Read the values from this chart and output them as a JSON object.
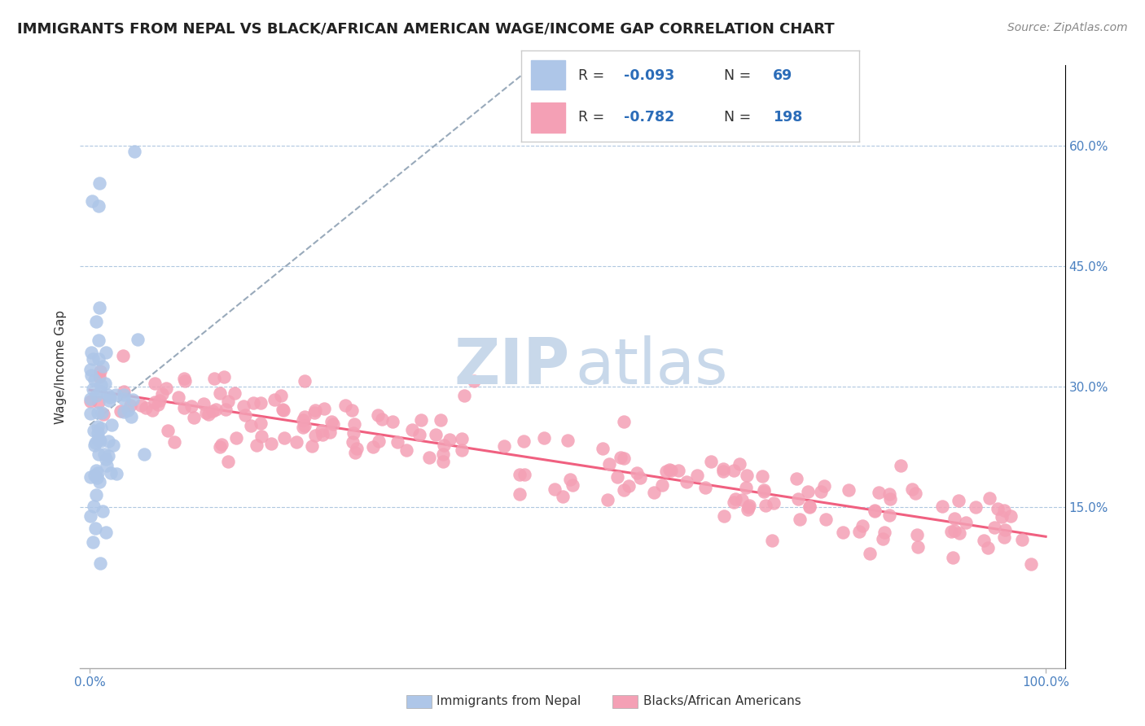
{
  "title": "IMMIGRANTS FROM NEPAL VS BLACK/AFRICAN AMERICAN WAGE/INCOME GAP CORRELATION CHART",
  "source": "Source: ZipAtlas.com",
  "ylabel": "Wage/Income Gap",
  "legend_label_1": "Immigrants from Nepal",
  "legend_label_2": "Blacks/African Americans",
  "r1": "-0.093",
  "n1": "69",
  "r2": "-0.782",
  "n2": "198",
  "color_nepal": "#aec6e8",
  "color_black": "#f4a0b5",
  "color_nepal_line": "#8ab0d8",
  "color_black_line": "#f06080",
  "text_color_r": "#2b6cb8",
  "watermark_color": "#c8d8ea",
  "grid_color": "#b0c8e0",
  "xlim": [
    0.0,
    1.0
  ],
  "ylim_low": -0.05,
  "ylim_high": 0.7,
  "yticks": [
    0.15,
    0.3,
    0.45,
    0.6
  ],
  "ytick_labels": [
    "15.0%",
    "30.0%",
    "45.0%",
    "60.0%"
  ]
}
